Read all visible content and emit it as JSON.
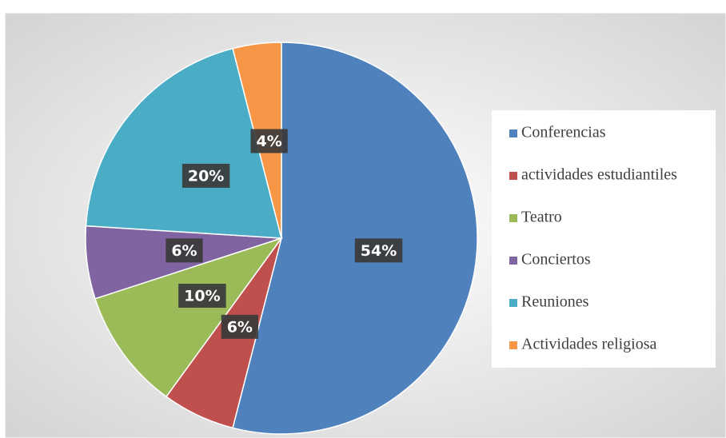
{
  "chart_data": {
    "type": "pie",
    "categories": [
      "Conferencias",
      "actividades estudiantiles",
      "Teatro",
      "Conciertos",
      "Reuniones",
      "Actividades religiosa"
    ],
    "values": [
      54,
      6,
      10,
      6,
      20,
      4
    ],
    "value_labels": [
      "54%",
      "6%",
      "10%",
      "6%",
      "20%",
      "4%"
    ],
    "colors": [
      "#4f81bd",
      "#c0504d",
      "#9bbb59",
      "#8064a2",
      "#4bacc6",
      "#f79646"
    ],
    "legend": "right"
  }
}
